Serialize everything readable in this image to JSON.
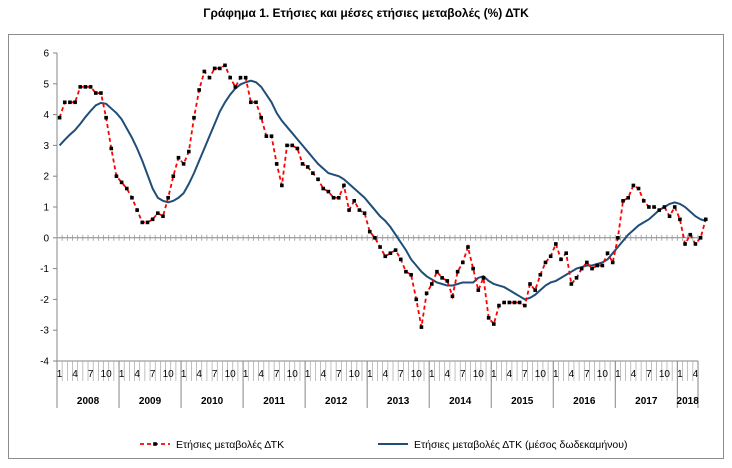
{
  "chart_data": {
    "type": "line",
    "title": "Γράφημα 1. Ετήσιες και μέσες ετήσιες μεταβολές (%) ΔΤΚ",
    "xlabel": "",
    "ylabel": "",
    "ylim": [
      -4,
      6
    ],
    "yticks": [
      "-4",
      "-3",
      "-2",
      "-1",
      "0",
      "1",
      "2",
      "3",
      "4",
      "5",
      "6"
    ],
    "month_labels": [
      "1",
      "4",
      "7",
      "10"
    ],
    "years": [
      "2008",
      "2009",
      "2010",
      "2011",
      "2012",
      "2013",
      "2014",
      "2015",
      "2016",
      "2017",
      "2018"
    ],
    "months_count": 124,
    "grid": false,
    "legend_position": "bottom",
    "series": [
      {
        "name": "Ετήσιες μεταβολές ΔΤΚ",
        "color": "#ff0000",
        "marker_color": "#000000",
        "style": "dashed-with-markers",
        "values": [
          3.9,
          4.4,
          4.4,
          4.4,
          4.9,
          4.9,
          4.9,
          4.7,
          4.7,
          3.9,
          2.9,
          2.0,
          1.8,
          1.6,
          1.3,
          0.9,
          0.5,
          0.5,
          0.6,
          0.8,
          0.7,
          1.3,
          2.0,
          2.6,
          2.4,
          2.8,
          3.9,
          4.8,
          5.4,
          5.2,
          5.5,
          5.5,
          5.6,
          5.2,
          4.9,
          5.2,
          5.2,
          4.4,
          4.4,
          3.9,
          3.3,
          3.3,
          2.4,
          1.7,
          3.0,
          3.0,
          2.9,
          2.4,
          2.3,
          2.1,
          1.9,
          1.6,
          1.5,
          1.3,
          1.3,
          1.7,
          0.9,
          1.2,
          0.9,
          0.8,
          0.2,
          0.0,
          -0.3,
          -0.6,
          -0.5,
          -0.4,
          -0.7,
          -1.1,
          -1.2,
          -2.0,
          -2.9,
          -1.8,
          -1.5,
          -1.1,
          -1.3,
          -1.4,
          -1.9,
          -1.1,
          -0.8,
          -0.3,
          -1.0,
          -1.7,
          -1.3,
          -2.6,
          -2.8,
          -2.2,
          -2.1,
          -2.1,
          -2.1,
          -2.1,
          -2.2,
          -1.5,
          -1.7,
          -1.2,
          -0.8,
          -0.6,
          -0.2,
          -0.7,
          -0.5,
          -1.5,
          -1.3,
          -1.0,
          -0.8,
          -1.0,
          -0.9,
          -0.9,
          -0.5,
          -0.8,
          0.0,
          1.2,
          1.3,
          1.7,
          1.6,
          1.2,
          1.0,
          1.0,
          0.9,
          1.0,
          0.7,
          1.0,
          0.6,
          -0.2,
          0.1,
          -0.2,
          0.0,
          0.6
        ]
      },
      {
        "name": "Ετήσιες μεταβολές ΔΤΚ (μέσος δωδεκαμήνου)",
        "color": "#1f4e79",
        "style": "solid",
        "values": [
          3.0,
          3.18,
          3.35,
          3.5,
          3.7,
          3.92,
          4.12,
          4.3,
          4.38,
          4.35,
          4.2,
          4.05,
          3.85,
          3.55,
          3.25,
          2.9,
          2.5,
          2.05,
          1.6,
          1.3,
          1.2,
          1.15,
          1.2,
          1.3,
          1.45,
          1.75,
          2.1,
          2.5,
          2.9,
          3.3,
          3.7,
          4.1,
          4.4,
          4.65,
          4.85,
          4.98,
          5.05,
          5.1,
          5.05,
          4.9,
          4.65,
          4.4,
          4.05,
          3.8,
          3.6,
          3.4,
          3.2,
          3.0,
          2.8,
          2.6,
          2.4,
          2.25,
          2.1,
          2.05,
          2.0,
          1.9,
          1.75,
          1.6,
          1.45,
          1.3,
          1.1,
          0.9,
          0.7,
          0.55,
          0.35,
          0.1,
          -0.15,
          -0.4,
          -0.7,
          -0.9,
          -1.1,
          -1.25,
          -1.35,
          -1.45,
          -1.5,
          -1.55,
          -1.55,
          -1.5,
          -1.45,
          -1.45,
          -1.45,
          -1.3,
          -1.25,
          -1.4,
          -1.5,
          -1.55,
          -1.6,
          -1.7,
          -1.8,
          -1.9,
          -2.0,
          -1.95,
          -1.85,
          -1.7,
          -1.55,
          -1.45,
          -1.4,
          -1.3,
          -1.2,
          -1.1,
          -1.0,
          -0.95,
          -0.9,
          -0.9,
          -0.85,
          -0.8,
          -0.7,
          -0.5,
          -0.3,
          -0.1,
          0.1,
          0.25,
          0.4,
          0.5,
          0.6,
          0.75,
          0.9,
          1.0,
          1.1,
          1.15,
          1.1,
          1.0,
          0.85,
          0.7,
          0.6,
          0.55
        ]
      }
    ]
  }
}
